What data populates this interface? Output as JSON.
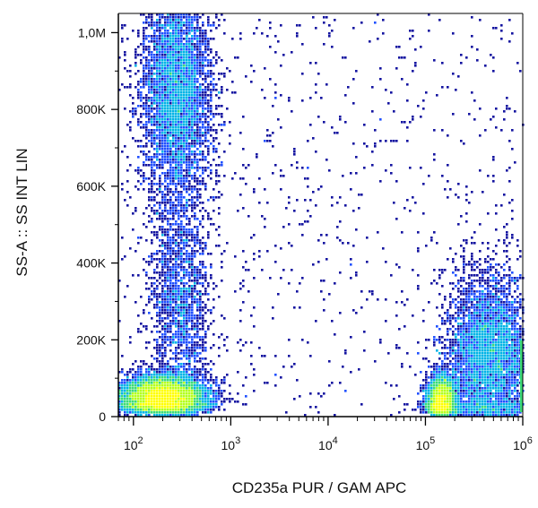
{
  "chart_data": {
    "type": "scatter",
    "title": "",
    "xlabel": "CD235a PUR / GAM APC",
    "ylabel": "SS-A :: SS INT LIN",
    "x_scale": "log",
    "y_scale": "linear",
    "xlim": [
      70,
      1000000
    ],
    "ylim": [
      0,
      1050000
    ],
    "grid": false,
    "colormap": [
      "#1414a0",
      "#2050ff",
      "#00b4e6",
      "#3cdc78",
      "#b4ff1e",
      "#ffff00"
    ],
    "x_ticks": [
      {
        "value": 100,
        "base": "10",
        "exp": "2"
      },
      {
        "value": 1000,
        "base": "10",
        "exp": "3"
      },
      {
        "value": 10000,
        "base": "10",
        "exp": "4"
      },
      {
        "value": 100000,
        "base": "10",
        "exp": "5"
      },
      {
        "value": 1000000,
        "base": "10",
        "exp": "6"
      }
    ],
    "y_ticks": [
      {
        "value": 0,
        "label": "0"
      },
      {
        "value": 200000,
        "label": "200K"
      },
      {
        "value": 400000,
        "label": "400K"
      },
      {
        "value": 600000,
        "label": "600K"
      },
      {
        "value": 800000,
        "label": "800K"
      },
      {
        "value": 1000000,
        "label": "1,0M"
      }
    ],
    "populations": [
      {
        "x_center": 200,
        "y_center": 50000,
        "x_spread_log": 0.2,
        "y_spread": 25000,
        "density": "very high"
      },
      {
        "x_center": 280,
        "y_center": 850000,
        "x_spread_log": 0.18,
        "y_spread": 150000,
        "density": "high"
      },
      {
        "x_center": 300,
        "y_center": 300000,
        "x_spread_log": 0.15,
        "y_spread": 150000,
        "density": "medium"
      },
      {
        "x_center": 145000,
        "y_center": 40000,
        "x_spread_log": 0.07,
        "y_spread": 30000,
        "density": "high"
      },
      {
        "x_center": 450000,
        "y_center": 150000,
        "x_spread_log": 0.22,
        "y_spread": 110000,
        "density": "high"
      }
    ]
  }
}
